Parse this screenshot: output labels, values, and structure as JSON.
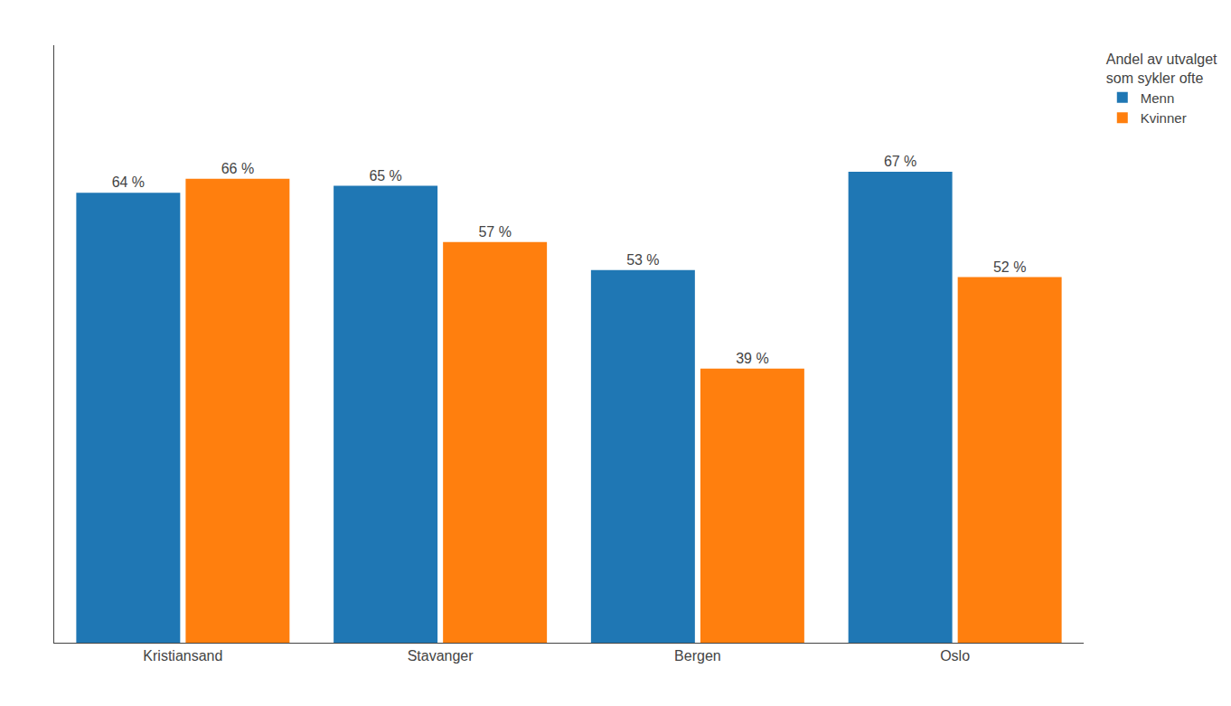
{
  "chart_data": {
    "type": "bar",
    "categories": [
      "Kristiansand",
      "Stavanger",
      "Bergen",
      "Oslo"
    ],
    "series": [
      {
        "name": "Menn",
        "values": [
          64,
          65,
          53,
          67
        ],
        "value_labels": [
          "64 %",
          "65 %",
          "53 %",
          "67 %"
        ]
      },
      {
        "name": "Kvinner",
        "values": [
          66,
          57,
          39,
          52
        ],
        "value_labels": [
          "66 %",
          "57 %",
          "39 %",
          "52 %"
        ]
      }
    ],
    "ylim": [
      0,
      85
    ],
    "yticks": [],
    "tick_labels": "x",
    "grid": false,
    "data_labels": true,
    "legend": "right",
    "legend_title": "Andel av utvalget\nsom sykler ofte"
  }
}
